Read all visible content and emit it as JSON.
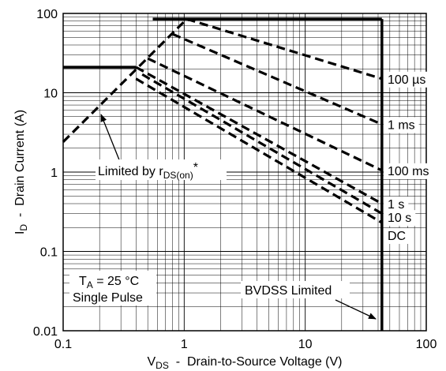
{
  "chart_data": {
    "type": "line",
    "xscale": "log",
    "yscale": "log",
    "xlim": [
      0.1,
      100
    ],
    "ylim": [
      0.01,
      100
    ],
    "grid": true,
    "xlabel": {
      "main": "V",
      "sub": "DS",
      "rest": "  -  Drain-to-Source Voltage (V)"
    },
    "ylabel": {
      "main": "I",
      "sub": "D",
      "rest": "  -  Drain Current (A)"
    },
    "x_ticks": [
      {
        "value": 0.1,
        "label": "0.1"
      },
      {
        "value": 1,
        "label": "1"
      },
      {
        "value": 10,
        "label": "10"
      },
      {
        "value": 100,
        "label": "100"
      }
    ],
    "y_ticks": [
      {
        "value": 0.01,
        "label": "0.01"
      },
      {
        "value": 0.1,
        "label": "0.1"
      },
      {
        "value": 1,
        "label": "1"
      },
      {
        "value": 10,
        "label": "10"
      },
      {
        "value": 100,
        "label": "100"
      }
    ],
    "limits": [
      {
        "name": "current-limit-pulsed",
        "style": "solid",
        "points": [
          [
            0.55,
            85
          ],
          [
            43,
            85
          ]
        ]
      },
      {
        "name": "current-limit-dc",
        "style": "solid",
        "points": [
          [
            0.1,
            21
          ],
          [
            0.4,
            21
          ]
        ]
      },
      {
        "name": "bvdss-limit",
        "style": "solid",
        "points": [
          [
            43,
            85
          ],
          [
            43,
            0.01
          ]
        ]
      }
    ],
    "series": [
      {
        "name": "RDS(on) limit",
        "style": "dashed",
        "points": [
          [
            0.1,
            2.4
          ],
          [
            1.05,
            85
          ]
        ]
      },
      {
        "name": "100 µs",
        "style": "dashed",
        "points": [
          [
            1.05,
            85
          ],
          [
            43,
            15
          ]
        ]
      },
      {
        "name": "1 ms",
        "style": "dashed",
        "points": [
          [
            0.8,
            55
          ],
          [
            43,
            4
          ]
        ]
      },
      {
        "name": "100 ms",
        "style": "dashed",
        "points": [
          [
            0.5,
            27
          ],
          [
            43,
            1.05
          ]
        ]
      },
      {
        "name": "1 s",
        "style": "dashed",
        "points": [
          [
            0.4,
            21
          ],
          [
            43,
            0.4
          ]
        ]
      },
      {
        "name": "10 s",
        "style": "dashed",
        "points": [
          [
            0.45,
            17
          ],
          [
            43,
            0.3
          ]
        ]
      },
      {
        "name": "DC",
        "style": "dashed",
        "points": [
          [
            0.4,
            15
          ],
          [
            43,
            0.23
          ]
        ]
      }
    ],
    "curve_labels": [
      {
        "text": "100 µs",
        "y": 15
      },
      {
        "text": "1 ms",
        "y": 4
      },
      {
        "text": "100 ms",
        "y": 1.05
      },
      {
        "text": "1 s",
        "y": 0.4
      },
      {
        "text": "10 s",
        "y": 0.27
      },
      {
        "text": "DC",
        "y": 0.16
      }
    ],
    "annotations": {
      "limited_by": {
        "prefix": "Limited by r",
        "sub": "DS(on)",
        "suffix": "*"
      },
      "conditions": {
        "line1_main": "T",
        "line1_sub": "A",
        "line1_rest": " = 25 °C",
        "line2": "Single Pulse"
      },
      "bvdss": "BVDSS Limited"
    }
  }
}
